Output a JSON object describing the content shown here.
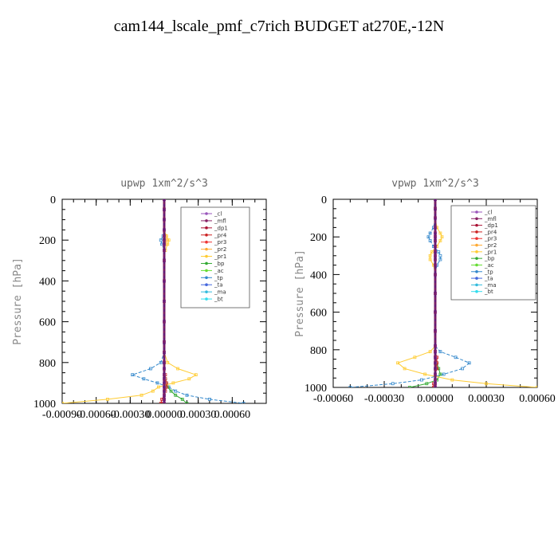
{
  "page": {
    "title": "cam144_lscale_pmf_c7rich  BUDGET at270E,-12N"
  },
  "chart_data": [
    {
      "type": "line",
      "title": "upwp   1xm^2/s^3",
      "xlabel": "",
      "ylabel": "Pressure [hPa]",
      "xlim": [
        -0.0009,
        0.0009
      ],
      "ylim": [
        1000,
        0
      ],
      "x_ticks": [
        "-0.00090",
        "-0.00060",
        "-0.00030",
        "0.00000",
        "0.00030",
        "0.00060"
      ],
      "y_ticks": [
        "0",
        "200",
        "400",
        "600",
        "800",
        "1000"
      ],
      "x_tick_values": [
        -0.0009,
        -0.0006,
        -0.0003,
        0,
        0.0003,
        0.0006
      ],
      "y_tick_values": [
        0,
        200,
        400,
        600,
        800,
        1000
      ],
      "legend_position": "top-right",
      "pressure": [
        0,
        50,
        100,
        150,
        180,
        200,
        220,
        250,
        300,
        400,
        500,
        600,
        700,
        750,
        800,
        830,
        860,
        880,
        900,
        920,
        940,
        960,
        980,
        1000
      ],
      "series": [
        {
          "name": "_cl",
          "color": "#9955bb",
          "marker": "+",
          "values": [
            0,
            0,
            0,
            0,
            0,
            0,
            0,
            0,
            0,
            0,
            0,
            0,
            0,
            0,
            0,
            0,
            0,
            0,
            0,
            0,
            0,
            0,
            0,
            0
          ]
        },
        {
          "name": "_mfl",
          "color": "#882266",
          "marker": "dot",
          "values": [
            0,
            0,
            0,
            0,
            0,
            0,
            0,
            0,
            0,
            0,
            0,
            0,
            0,
            0,
            0,
            0,
            0,
            0,
            0,
            0,
            0,
            0,
            0,
            0
          ]
        },
        {
          "name": "_dp1",
          "color": "#aa1133",
          "marker": "diamond",
          "values": [
            0,
            0,
            0,
            0,
            0,
            0,
            0,
            0,
            0,
            0,
            0,
            0,
            0,
            0,
            0,
            0,
            0,
            0,
            0,
            0,
            0,
            0,
            0,
            0
          ]
        },
        {
          "name": "_pr4",
          "color": "#cc2222",
          "marker": "circle",
          "values": [
            0,
            0,
            0,
            0,
            0,
            0,
            0,
            0,
            0,
            0,
            0,
            0,
            0,
            0,
            0,
            0,
            1e-05,
            1e-05,
            2e-05,
            2e-05,
            1e-05,
            0,
            -2e-05,
            -3e-05
          ]
        },
        {
          "name": "_pr3",
          "color": "#ee3333",
          "marker": "triangle-down",
          "values": [
            0,
            0,
            0,
            0,
            0,
            0,
            0,
            0,
            0,
            0,
            0,
            0,
            0,
            0,
            0,
            0,
            0,
            0,
            0,
            0,
            0,
            0,
            0,
            -1e-05
          ]
        },
        {
          "name": "_pr2",
          "color": "#ffaa33",
          "marker": "triangle-up",
          "values": [
            0,
            0,
            0,
            0,
            1e-05,
            2e-05,
            1e-05,
            0,
            0,
            0,
            0,
            0,
            0,
            0,
            0,
            0,
            0,
            0,
            0,
            0,
            0,
            0,
            0,
            0
          ]
        },
        {
          "name": "_pr1",
          "color": "#ffcc33",
          "marker": "square",
          "values": [
            0,
            0,
            0,
            0,
            2e-05,
            4e-05,
            3e-05,
            1e-05,
            0,
            0,
            0,
            0,
            0,
            0,
            3e-05,
            0.00012,
            0.00028,
            0.00022,
            8e-05,
            -5e-05,
            -0.0001,
            -0.0002,
            -0.0005,
            -0.0009
          ]
        },
        {
          "name": "_bp",
          "color": "#33aa33",
          "marker": "x",
          "values": [
            0,
            0,
            0,
            0,
            0,
            0,
            0,
            0,
            0,
            0,
            0,
            0,
            0,
            0,
            0,
            0,
            0,
            1e-05,
            2e-05,
            3e-05,
            6e-05,
            0.0001,
            0.00016,
            0.0002
          ]
        },
        {
          "name": "_ac",
          "color": "#66dd33",
          "marker": "star",
          "values": [
            0,
            0,
            0,
            0,
            0,
            0,
            0,
            0,
            0,
            0,
            0,
            0,
            0,
            0,
            0,
            0,
            0,
            0,
            0,
            0,
            0,
            0,
            0,
            0
          ]
        },
        {
          "name": "_tp",
          "color": "#3388cc",
          "marker": "asterisk",
          "values": [
            0,
            0,
            0,
            0,
            -1e-05,
            -3e-05,
            -2e-05,
            0,
            0,
            0,
            0,
            0,
            0,
            0,
            -3e-05,
            -0.00012,
            -0.00028,
            -0.00018,
            -6e-05,
            4e-05,
            0.0001,
            0.0002,
            0.0004,
            0.0007
          ]
        },
        {
          "name": "_ta",
          "color": "#4466dd",
          "marker": "plus",
          "values": [
            0,
            0,
            0,
            0,
            0,
            0,
            0,
            0,
            0,
            0,
            0,
            0,
            0,
            0,
            0,
            0,
            0,
            0,
            0,
            0,
            0,
            0,
            0,
            0
          ]
        },
        {
          "name": "_ma",
          "color": "#33bbdd",
          "marker": "dash",
          "values": [
            0,
            0,
            0,
            0,
            0,
            0,
            0,
            0,
            0,
            0,
            0,
            0,
            0,
            0,
            0,
            0,
            0,
            0,
            0,
            0,
            0,
            0,
            0,
            0
          ]
        },
        {
          "name": "_bt",
          "color": "#33ddee",
          "marker": "dot",
          "values": [
            0,
            0,
            0,
            0,
            0,
            0,
            0,
            0,
            0,
            0,
            0,
            0,
            0,
            0,
            0,
            0,
            0,
            0,
            0,
            0,
            0,
            0,
            0,
            0
          ]
        }
      ]
    },
    {
      "type": "line",
      "title": "vpwp   1xm^2/s^3",
      "xlabel": "",
      "ylabel": "Pressure [hPa]",
      "xlim": [
        -0.0006,
        0.0006
      ],
      "ylim": [
        1000,
        0
      ],
      "x_ticks": [
        "-0.00060",
        "-0.00030",
        "0.00000",
        "0.00030",
        "0.00060"
      ],
      "y_ticks": [
        "0",
        "200",
        "400",
        "600",
        "800",
        "1000"
      ],
      "x_tick_values": [
        -0.0006,
        -0.0003,
        0,
        0.0003,
        0.0006
      ],
      "y_tick_values": [
        0,
        200,
        400,
        600,
        800,
        1000
      ],
      "legend_position": "top-right",
      "pressure": [
        0,
        50,
        100,
        150,
        180,
        200,
        220,
        250,
        280,
        300,
        320,
        350,
        400,
        500,
        600,
        700,
        780,
        810,
        840,
        870,
        900,
        930,
        960,
        980,
        1000
      ],
      "series": [
        {
          "name": "_cl",
          "color": "#9955bb",
          "marker": "+",
          "values": [
            0,
            0,
            0,
            0,
            0,
            0,
            0,
            0,
            0,
            0,
            0,
            0,
            0,
            0,
            0,
            0,
            0,
            0,
            0,
            0,
            0,
            0,
            0,
            0,
            0
          ]
        },
        {
          "name": "_mfl",
          "color": "#882266",
          "marker": "dot",
          "values": [
            0,
            0,
            0,
            0,
            0,
            0,
            0,
            0,
            0,
            0,
            0,
            0,
            0,
            0,
            0,
            0,
            0,
            0,
            0,
            0,
            0,
            0,
            0,
            0,
            0
          ]
        },
        {
          "name": "_dp1",
          "color": "#aa1133",
          "marker": "diamond",
          "values": [
            0,
            0,
            0,
            0,
            0,
            0,
            0,
            0,
            0,
            0,
            0,
            0,
            0,
            0,
            0,
            0,
            0,
            0,
            0,
            0,
            0,
            0,
            0,
            0,
            0
          ]
        },
        {
          "name": "_pr4",
          "color": "#cc2222",
          "marker": "circle",
          "values": [
            0,
            0,
            0,
            0,
            0,
            0,
            0,
            0,
            0,
            0,
            0,
            0,
            0,
            0,
            0,
            0,
            0,
            0,
            1e-05,
            1e-05,
            1e-05,
            0,
            0,
            -1e-05,
            -1e-05
          ]
        },
        {
          "name": "_pr3",
          "color": "#ee3333",
          "marker": "triangle-down",
          "values": [
            0,
            0,
            0,
            0,
            0,
            0,
            0,
            0,
            0,
            0,
            0,
            0,
            0,
            0,
            0,
            0,
            0,
            0,
            0,
            0,
            0,
            0,
            0,
            0,
            0
          ]
        },
        {
          "name": "_pr2",
          "color": "#ffaa33",
          "marker": "triangle-up",
          "values": [
            0,
            0,
            0,
            0,
            0,
            0,
            0,
            0,
            0,
            0,
            0,
            0,
            0,
            0,
            0,
            0,
            0,
            0,
            0,
            0,
            0,
            0,
            0,
            0,
            0
          ]
        },
        {
          "name": "_pr1",
          "color": "#ffcc33",
          "marker": "square",
          "values": [
            0,
            0,
            0,
            1e-05,
            3e-05,
            4e-05,
            3e-05,
            1e-05,
            -2e-05,
            -3e-05,
            -3e-05,
            -1e-05,
            0,
            0,
            0,
            0,
            0,
            -3e-05,
            -0.00012,
            -0.00022,
            -0.00018,
            -6e-05,
            0.0001,
            0.0003,
            0.0006
          ]
        },
        {
          "name": "_bp",
          "color": "#33aa33",
          "marker": "x",
          "values": [
            0,
            0,
            0,
            0,
            0,
            0,
            0,
            0,
            0,
            0,
            0,
            0,
            0,
            0,
            0,
            0,
            0,
            0,
            0,
            1e-05,
            2e-05,
            3e-05,
            1e-05,
            -5e-05,
            -0.00015
          ]
        },
        {
          "name": "_ac",
          "color": "#66dd33",
          "marker": "star",
          "values": [
            0,
            0,
            0,
            0,
            0,
            0,
            0,
            0,
            0,
            0,
            0,
            0,
            0,
            0,
            0,
            0,
            0,
            0,
            0,
            0,
            0,
            0,
            0,
            0,
            0
          ]
        },
        {
          "name": "_tp",
          "color": "#3388cc",
          "marker": "asterisk",
          "values": [
            0,
            0,
            0,
            -1e-05,
            -3e-05,
            -4e-05,
            -3e-05,
            -1e-05,
            2e-05,
            3e-05,
            3e-05,
            1e-05,
            0,
            0,
            0,
            0,
            0,
            3e-05,
            0.00012,
            0.0002,
            0.00016,
            5e-05,
            -8e-05,
            -0.00025,
            -0.0005
          ]
        },
        {
          "name": "_ta",
          "color": "#4466dd",
          "marker": "plus",
          "values": [
            0,
            0,
            0,
            0,
            0,
            0,
            0,
            0,
            0,
            0,
            0,
            0,
            0,
            0,
            0,
            0,
            0,
            0,
            0,
            0,
            0,
            0,
            0,
            0,
            0
          ]
        },
        {
          "name": "_ma",
          "color": "#33bbdd",
          "marker": "dash",
          "values": [
            0,
            0,
            0,
            0,
            0,
            0,
            0,
            0,
            0,
            0,
            0,
            0,
            0,
            0,
            0,
            0,
            0,
            0,
            0,
            0,
            0,
            0,
            0,
            0,
            0
          ]
        },
        {
          "name": "_bt",
          "color": "#33ddee",
          "marker": "dot",
          "values": [
            0,
            0,
            0,
            0,
            0,
            0,
            0,
            0,
            0,
            0,
            0,
            0,
            0,
            0,
            0,
            0,
            0,
            0,
            0,
            0,
            0,
            0,
            0,
            0,
            0
          ]
        }
      ]
    }
  ]
}
